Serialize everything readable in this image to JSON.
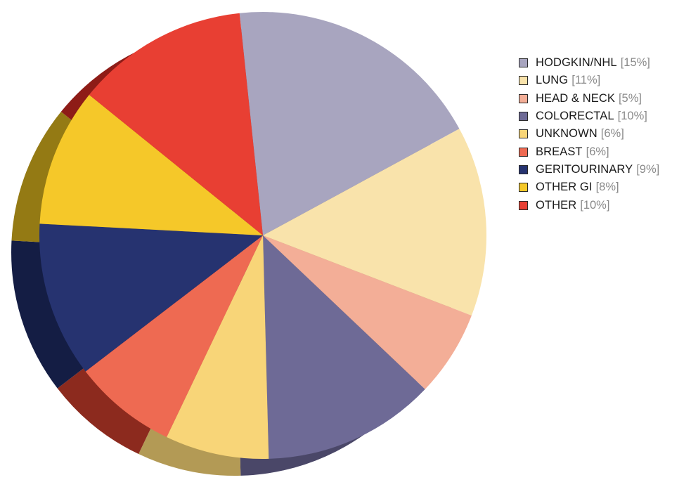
{
  "chart_data": {
    "type": "pie",
    "slices": [
      {
        "label": "HODGKIN/NHL",
        "percent_label": "[15%]",
        "value": 15,
        "color": "#a8a5bf",
        "side_color": "#6e6a82"
      },
      {
        "label": "LUNG",
        "percent_label": "[11%]",
        "value": 11,
        "color": "#f9e3ab",
        "side_color": "#b9a877"
      },
      {
        "label": "HEAD & NECK",
        "percent_label": "[5%]",
        "value": 5,
        "color": "#f3ae97",
        "side_color": "#b07b6a"
      },
      {
        "label": "COLORECTAL",
        "percent_label": "[10%]",
        "value": 10,
        "color": "#6e6a96",
        "side_color": "#4a4768"
      },
      {
        "label": "UNKNOWN",
        "percent_label": "[6%]",
        "value": 6,
        "color": "#f8d578",
        "side_color": "#b39a55"
      },
      {
        "label": "BREAST",
        "percent_label": "[6%]",
        "value": 6,
        "color": "#ee6a52",
        "side_color": "#8c2a1e"
      },
      {
        "label": "GERITOURINARY",
        "percent_label": "[9%]",
        "value": 9,
        "color": "#263370",
        "side_color": "#141d44"
      },
      {
        "label": "OTHER GI",
        "percent_label": "[8%]",
        "value": 8,
        "color": "#f5c829",
        "side_color": "#947a14"
      },
      {
        "label": "OTHER",
        "percent_label": "[10%]",
        "value": 10,
        "color": "#e83f33",
        "side_color": "#8e1c17"
      }
    ],
    "legend_position": "right",
    "title": ""
  }
}
